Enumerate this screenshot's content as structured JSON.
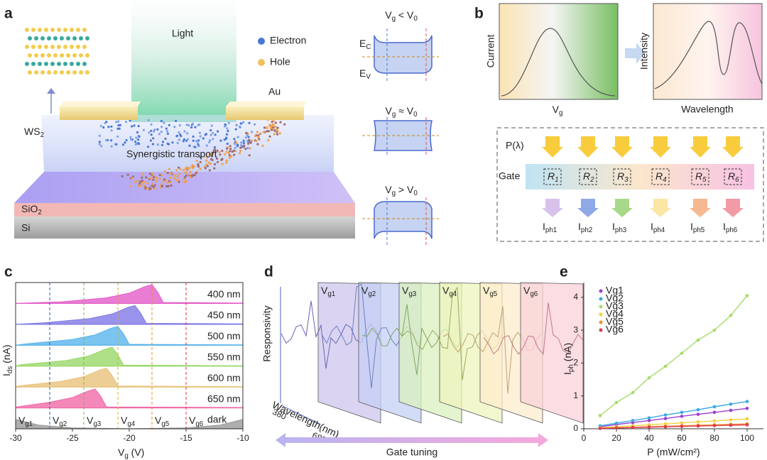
{
  "panels": {
    "a": {
      "letter": "a",
      "light": "Light",
      "electron": "Electron",
      "hole": "Hole",
      "au": "Au",
      "ws2": [
        "WS",
        "2"
      ],
      "transport": "Synergistic transport",
      "sio2": [
        "SiO",
        "2"
      ],
      "si": "Si",
      "ec": [
        "E",
        "C"
      ],
      "ev": [
        "E",
        "V"
      ],
      "bands": [
        {
          "condition": [
            "V",
            "g",
            " < V",
            "0"
          ]
        },
        {
          "condition": [
            "V",
            "g",
            " ≈ V",
            "0"
          ]
        },
        {
          "condition": [
            "V",
            "g",
            " > V",
            "0"
          ]
        }
      ]
    },
    "b": {
      "letter": "b",
      "current": "Current",
      "vg": [
        "V",
        "g"
      ],
      "intensity": "Intensity",
      "wavelength": "Wavelength",
      "power": "P(λ)",
      "gate": "Gate",
      "responsivities": [
        [
          "R",
          "1"
        ],
        [
          "R",
          "2"
        ],
        [
          "R",
          "3"
        ],
        [
          "R",
          "4"
        ],
        [
          "R",
          "5"
        ],
        [
          "R",
          "6"
        ]
      ],
      "photocurrents": [
        [
          "I",
          "ph1"
        ],
        [
          "I",
          "ph2"
        ],
        [
          "I",
          "ph3"
        ],
        [
          "I",
          "ph4"
        ],
        [
          "I",
          "ph5"
        ],
        [
          "I",
          "ph6"
        ]
      ]
    },
    "d": {
      "letter": "d",
      "responsivity": "Responsivity",
      "wavelength": "Wavelength(nm)",
      "start": "380",
      "end": "680",
      "gates": [
        [
          "V",
          "g1"
        ],
        [
          "V",
          "g2"
        ],
        [
          "V",
          "g3"
        ],
        [
          "V",
          "g4"
        ],
        [
          "V",
          "g5"
        ],
        [
          "V",
          "g6"
        ]
      ],
      "tuning": "Gate tuning"
    }
  },
  "chart_data": [
    {
      "panel": "c",
      "type": "ridge",
      "xlabel": [
        "V",
        "g",
        " (V)"
      ],
      "ylabel": [
        "I",
        "ds",
        " (nA)"
      ],
      "xlim": [
        -30,
        -10
      ],
      "xticks": [
        -30,
        -25,
        -20,
        -15,
        -10
      ],
      "markers": [
        {
          "x": -30,
          "label": [
            "V",
            "g1"
          ],
          "color": "#333333"
        },
        {
          "x": -27,
          "label": [
            "V",
            "g2"
          ],
          "color": "#2a55c8"
        },
        {
          "x": -24,
          "label": [
            "V",
            "g3"
          ],
          "color": "#6cbf3c"
        },
        {
          "x": -21,
          "label": [
            "V",
            "g4"
          ],
          "color": "#d8b400"
        },
        {
          "x": -18,
          "label": [
            "V",
            "g5"
          ],
          "color": "#f08c1c"
        },
        {
          "x": -15,
          "label": [
            "V",
            "g6"
          ],
          "color": "#e0303e"
        }
      ],
      "series": [
        {
          "name": "400 nm",
          "color": "#e45cc8",
          "x": [
            -30,
            -26,
            -22,
            -20,
            -18.6,
            -18,
            -17.5,
            -17,
            -10
          ],
          "values": [
            0,
            0.08,
            0.3,
            0.55,
            0.9,
            1,
            0.6,
            0.05,
            0.02
          ]
        },
        {
          "name": "450 nm",
          "color": "#7f78e6",
          "x": [
            -30,
            -27.5,
            -23.5,
            -21.5,
            -20.1,
            -19.5,
            -19,
            -18.5,
            -10
          ],
          "values": [
            0,
            0.08,
            0.3,
            0.55,
            0.9,
            1,
            0.6,
            0.05,
            0.02
          ]
        },
        {
          "name": "500 nm",
          "color": "#5ab4ec",
          "x": [
            -30,
            -29,
            -25,
            -23,
            -21.6,
            -21,
            -20.5,
            -20,
            -10
          ],
          "values": [
            0,
            0.08,
            0.3,
            0.55,
            0.9,
            1,
            0.6,
            0.05,
            0.02
          ]
        },
        {
          "name": "550 nm",
          "color": "#9ad86a",
          "x": [
            -30,
            -29.5,
            -25.5,
            -23.5,
            -22.1,
            -21.5,
            -21,
            -20.5,
            -10
          ],
          "values": [
            0,
            0.08,
            0.3,
            0.55,
            0.9,
            1,
            0.6,
            0.05,
            0.02
          ]
        },
        {
          "name": "600 nm",
          "color": "#e8c27a",
          "x": [
            -30,
            -29.8,
            -26,
            -24,
            -22.6,
            -22,
            -21.5,
            -21,
            -10
          ],
          "values": [
            0,
            0.05,
            0.3,
            0.55,
            0.9,
            1,
            0.6,
            0.05,
            0.02
          ]
        },
        {
          "name": "650 nm",
          "color": "#f06aa8",
          "x": [
            -30,
            -29.9,
            -27,
            -25,
            -23.6,
            -23,
            -22.5,
            -22,
            -10
          ],
          "values": [
            0,
            0.05,
            0.3,
            0.55,
            0.9,
            1,
            0.6,
            0.05,
            0.02
          ]
        },
        {
          "name": "dark",
          "color": "#9a9a9a",
          "x": [
            -30,
            -28,
            -25,
            -20,
            -15,
            -12,
            -10
          ],
          "values": [
            0.5,
            0.2,
            0.05,
            0,
            0.05,
            0.2,
            0.5
          ]
        }
      ]
    },
    {
      "panel": "e",
      "type": "scatter-line",
      "xlabel": "P (mW/cm²)",
      "ylabel": [
        "I",
        "ph",
        " (nA)"
      ],
      "xlim": [
        0,
        110
      ],
      "ylim": [
        0,
        4.45
      ],
      "xticks": [
        0,
        20,
        40,
        60,
        80,
        100
      ],
      "yticks": [
        0,
        1,
        2,
        3,
        4
      ],
      "x": [
        10,
        20,
        30,
        40,
        50,
        60,
        70,
        80,
        90,
        100
      ],
      "series": [
        {
          "name": "Vg1",
          "color": "#9b3fd0",
          "values": [
            0.06,
            0.13,
            0.19,
            0.25,
            0.31,
            0.38,
            0.44,
            0.5,
            0.56,
            0.62
          ]
        },
        {
          "name": "Vg2",
          "color": "#3aa8e8",
          "values": [
            0.09,
            0.17,
            0.25,
            0.33,
            0.42,
            0.5,
            0.58,
            0.67,
            0.75,
            0.83
          ]
        },
        {
          "name": "Vg3",
          "color": "#a6dc6a",
          "values": [
            0.4,
            0.8,
            1.1,
            1.55,
            1.9,
            2.3,
            2.7,
            3.0,
            3.45,
            4.05
          ]
        },
        {
          "name": "Vg4",
          "color": "#f2d040",
          "values": [
            0.03,
            0.06,
            0.09,
            0.12,
            0.15,
            0.18,
            0.21,
            0.24,
            0.27,
            0.3
          ]
        },
        {
          "name": "Vg5",
          "color": "#f0902a",
          "values": [
            0.015,
            0.03,
            0.045,
            0.06,
            0.075,
            0.09,
            0.105,
            0.12,
            0.135,
            0.15
          ]
        },
        {
          "name": "Vg6",
          "color": "#e03a50",
          "values": [
            0.012,
            0.024,
            0.036,
            0.048,
            0.06,
            0.072,
            0.084,
            0.096,
            0.108,
            0.12
          ]
        }
      ]
    }
  ]
}
